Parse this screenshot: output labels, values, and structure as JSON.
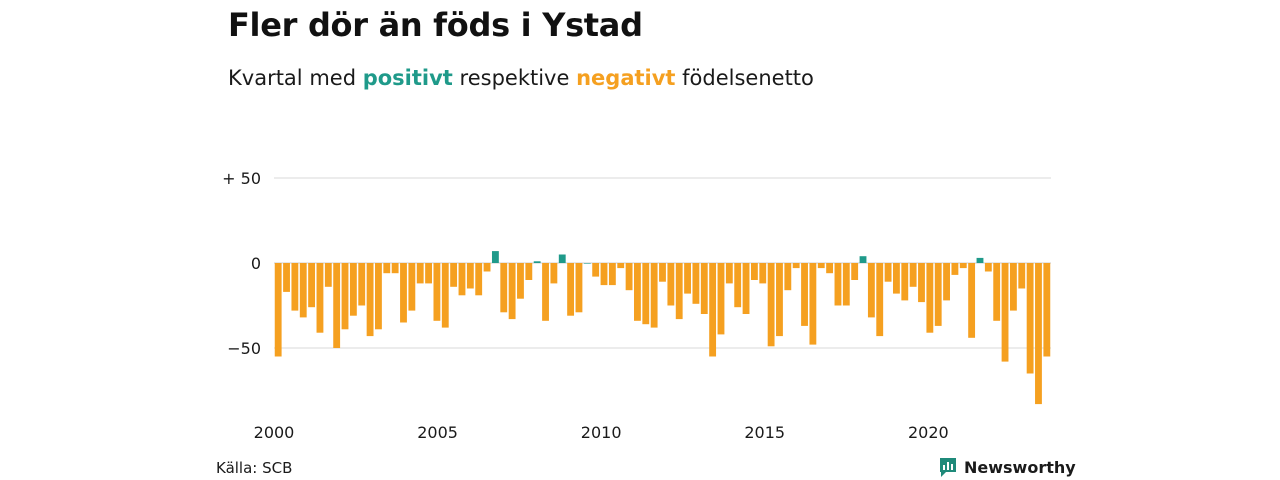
{
  "title": "Fler dör än föds i Ystad",
  "subtitle": {
    "prefix": "Kvartal med",
    "positive": "positivt",
    "middle": "respektive",
    "negative": "negativt",
    "suffix": "födelsenetto"
  },
  "source": "Källa: SCB",
  "brand": {
    "name": "Newsworthy",
    "icon": "newsworthy-logo-icon"
  },
  "colors": {
    "positive": "#1f9a8a",
    "negative": "#f5a020",
    "grid": "#d9d9d9",
    "text": "#1a1a1a"
  },
  "chart_data": {
    "type": "bar",
    "title": "Fler dör än föds i Ystad",
    "xlabel": "",
    "ylabel": "",
    "xlim": [
      2000,
      2023.75
    ],
    "ylim": [
      -85,
      55
    ],
    "yticks": [
      50,
      0,
      -50
    ],
    "ytick_labels": [
      "+ 50",
      "0",
      "−50"
    ],
    "xticks": [
      2000,
      2005,
      2010,
      2015,
      2020
    ],
    "xtick_labels": [
      "2000",
      "2005",
      "2010",
      "2015",
      "2020"
    ],
    "grid": true,
    "legend": "none",
    "series": [
      {
        "start": "2000 Q1",
        "frequency": "quarterly",
        "values": [
          -55,
          -17,
          -28,
          -32,
          -26,
          -41,
          -14,
          -50,
          -39,
          -31,
          -25,
          -43,
          -39,
          -6,
          -6,
          -35,
          -28,
          -12,
          -12,
          -34,
          -38,
          -14,
          -19,
          -15,
          -19,
          -5,
          7,
          -29,
          -33,
          -21,
          -10,
          1,
          -34,
          -12,
          5,
          -31,
          -29,
          0,
          -8,
          -13,
          -13,
          -3,
          -16,
          -34,
          -36,
          -38,
          -11,
          -25,
          -33,
          -18,
          -24,
          -30,
          -55,
          -42,
          -12,
          -26,
          -30,
          -10,
          -12,
          -49,
          -43,
          -16,
          -3,
          -37,
          -48,
          -3,
          -6,
          -25,
          -25,
          -10,
          4,
          -32,
          -43,
          -11,
          -18,
          -22,
          -14,
          -23,
          -41,
          -37,
          -22,
          -7,
          -3,
          -44,
          3,
          -5,
          -34,
          -58,
          -28,
          -15,
          -65,
          -83,
          -55
        ]
      }
    ]
  }
}
